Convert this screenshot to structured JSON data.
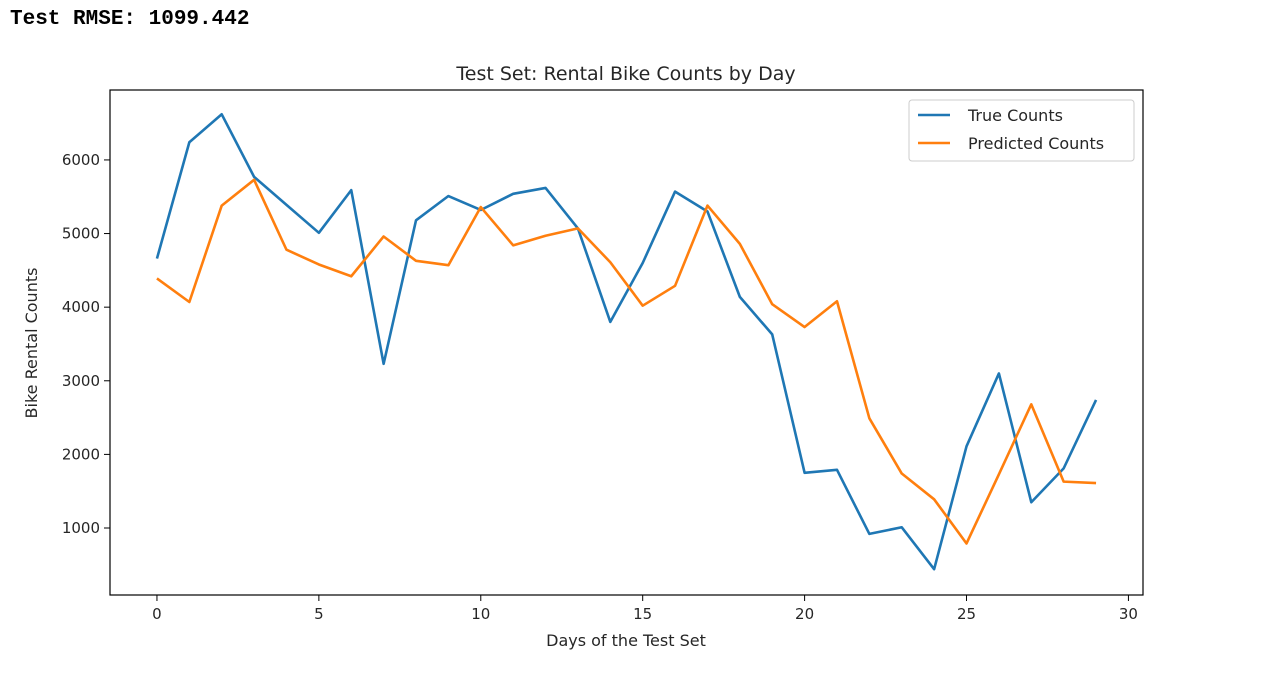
{
  "output": {
    "text": "Test RMSE: 1099.442"
  },
  "chart_data": {
    "type": "line",
    "title": "Test Set: Rental Bike Counts by Day",
    "xlabel": "Days of the Test Set",
    "ylabel": "Bike Rental Counts",
    "xlim": [
      -1.45,
      30.45
    ],
    "ylim": [
      90,
      6950
    ],
    "xticks": [
      0,
      5,
      10,
      15,
      20,
      25,
      30
    ],
    "yticks": [
      1000,
      2000,
      3000,
      4000,
      5000,
      6000
    ],
    "grid": false,
    "legend_position": "top-right",
    "x": [
      0,
      1,
      2,
      3,
      4,
      5,
      6,
      7,
      8,
      9,
      10,
      11,
      12,
      13,
      14,
      15,
      16,
      17,
      18,
      19,
      20,
      21,
      22,
      23,
      24,
      25,
      26,
      27,
      28,
      29
    ],
    "series": [
      {
        "name": "True Counts",
        "color": "#1f77b4",
        "values": [
          4660,
          6240,
          6620,
          5770,
          5390,
          5010,
          5590,
          3230,
          5180,
          5510,
          5320,
          5540,
          5620,
          5070,
          3800,
          4600,
          5570,
          5300,
          4140,
          3630,
          1750,
          1790,
          920,
          1010,
          440,
          2110,
          3100,
          1350,
          1810,
          2740
        ]
      },
      {
        "name": "Predicted Counts",
        "color": "#ff7f0e",
        "values": [
          4390,
          4070,
          5380,
          5730,
          4780,
          4580,
          4420,
          4960,
          4630,
          4570,
          5360,
          4840,
          4970,
          5070,
          4610,
          4020,
          4290,
          5380,
          4860,
          4040,
          3730,
          4080,
          2490,
          1740,
          1390,
          790,
          1730,
          2680,
          1630,
          1610
        ]
      }
    ]
  }
}
